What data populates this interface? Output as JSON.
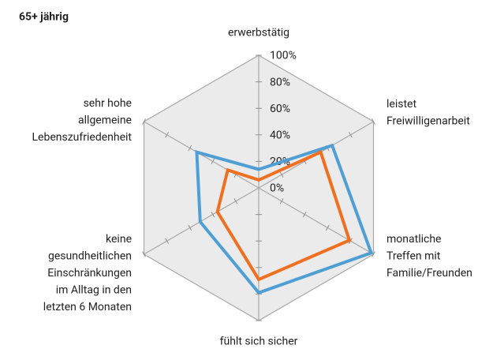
{
  "chart_data": {
    "type": "radar",
    "title": "65+ jährig",
    "categories": [
      "erwerbstätig",
      "leistet\nFreiwilligenarbeit",
      "monatliche\nTreffen mit\nFamilie/Freunden",
      "fühlt sich sicher",
      "keine\ngesundheitlichen\nEinschränkungen\nim Alltag in den\nletzten 6 Monaten",
      "sehr hohe\nallgemeine\nLebenszufriedenheit"
    ],
    "series": [
      {
        "color": "#4f9fd5",
        "values": [
          14,
          64,
          98,
          79,
          51,
          54
        ]
      },
      {
        "color": "#f07022",
        "values": [
          6,
          54,
          79,
          69,
          36,
          27
        ]
      }
    ],
    "rlim": [
      0,
      100
    ],
    "rticks": [
      {
        "value": 0,
        "label": "0%"
      },
      {
        "value": 20,
        "label": "20%"
      },
      {
        "value": 40,
        "label": "40%"
      },
      {
        "value": 60,
        "label": "60%"
      },
      {
        "value": 80,
        "label": "80%"
      },
      {
        "value": 100,
        "label": "100%"
      }
    ]
  }
}
